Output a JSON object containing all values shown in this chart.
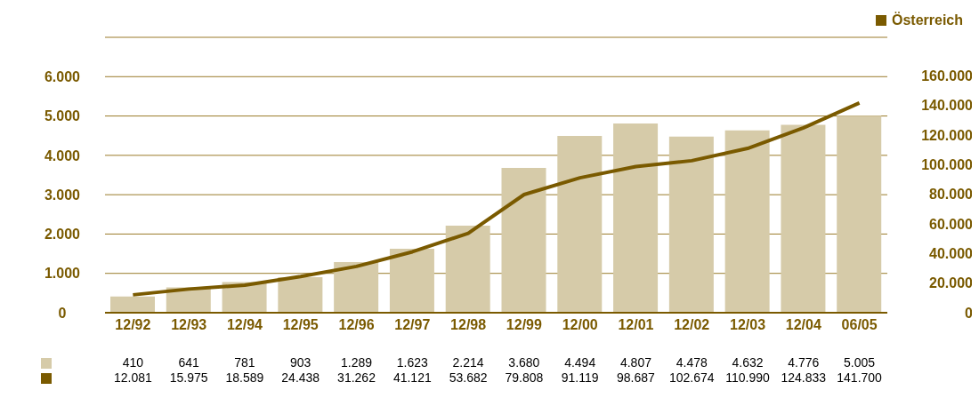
{
  "chart_data": {
    "type": "bar",
    "categories": [
      "12/92",
      "12/93",
      "12/94",
      "12/95",
      "12/96",
      "12/97",
      "12/98",
      "12/99",
      "12/00",
      "12/01",
      "12/02",
      "12/03",
      "12/04",
      "06/05"
    ],
    "series": [
      {
        "color": "#d6cba9",
        "values": [
          410,
          641,
          781,
          903,
          1289,
          1623,
          2214,
          3680,
          4494,
          4807,
          4478,
          4632,
          4776,
          5005
        ],
        "value_labels": [
          "410",
          "641",
          "781",
          "903",
          "1.289",
          "1.623",
          "2.214",
          "3.680",
          "4.494",
          "4.807",
          "4.478",
          "4.632",
          "4.776",
          "5.005"
        ]
      },
      {
        "type": "line",
        "name": "Österreich",
        "color": "#7a5a00",
        "axis": "y2",
        "values": [
          12081,
          15975,
          18589,
          24438,
          31262,
          41121,
          53682,
          79808,
          91119,
          98687,
          102674,
          110990,
          124833,
          141700
        ],
        "value_labels": [
          "12.081",
          "15.975",
          "18.589",
          "24.438",
          "31.262",
          "41.121",
          "53.682",
          "79.808",
          "91.119",
          "98.687",
          "102.674",
          "110.990",
          "124.833",
          "141.700"
        ]
      }
    ],
    "ylim": [
      0,
      7000
    ],
    "yticks": [
      0,
      {
        "value": 1000,
        "label": "1.000"
      },
      {
        "value": 2000,
        "label": "2.000"
      },
      {
        "value": 3000,
        "label": "3.000"
      },
      {
        "value": 4000,
        "label": "4.000"
      },
      {
        "value": 5000,
        "label": "5.000"
      },
      {
        "value": 6000,
        "label": "6.000"
      },
      {
        "value": 7000,
        "label": null
      }
    ],
    "y2lim": [
      0,
      186000
    ],
    "y2ticks": [
      0,
      {
        "value": 20000,
        "label": "20.000"
      },
      {
        "value": 40000,
        "label": "40.000"
      },
      {
        "value": 60000,
        "label": "60.000"
      },
      {
        "value": 80000,
        "label": "80.000"
      },
      {
        "value": 100000,
        "label": "100.000"
      },
      {
        "value": 120000,
        "label": "120.000"
      },
      {
        "value": 140000,
        "label": "140.000"
      },
      {
        "value": 160000,
        "label": "160.000"
      }
    ],
    "grid": "y",
    "legend": "top right",
    "marker": "none",
    "line_style": "solid"
  }
}
